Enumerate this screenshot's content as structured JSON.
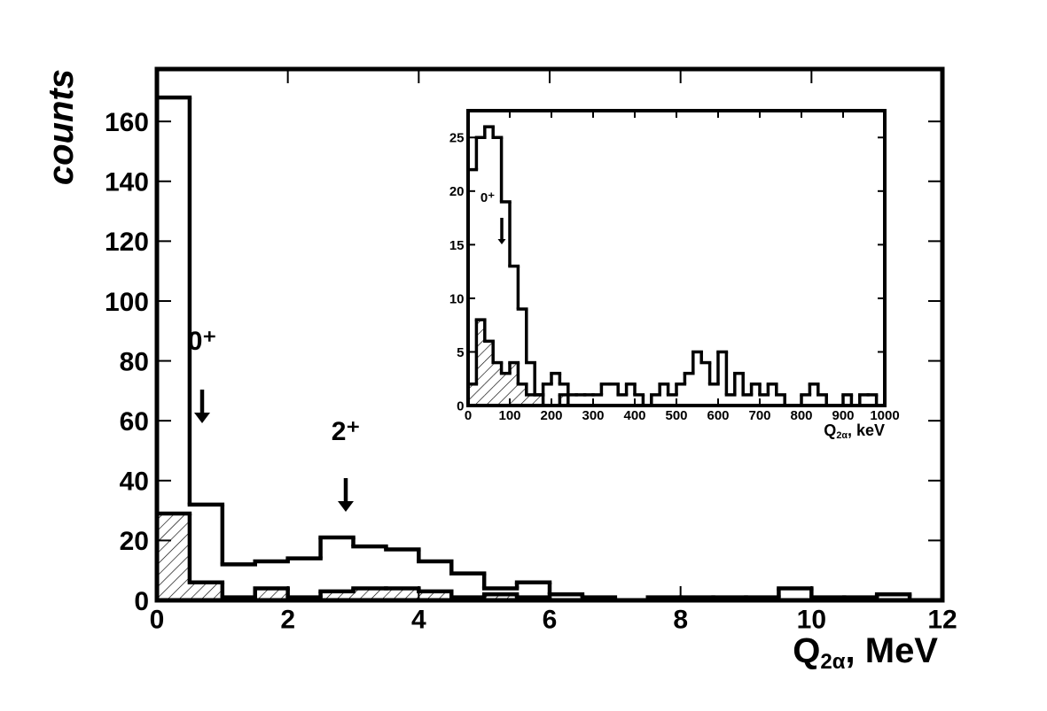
{
  "chart_data": [
    {
      "type": "histogram",
      "x_label": [
        "Q",
        "2α",
        ", MeV"
      ],
      "y_label": "counts",
      "annotations": [
        "0⁺",
        "2⁺"
      ],
      "bins": [
        0,
        0.5,
        1,
        1.5,
        2,
        2.5,
        3,
        3.5,
        4,
        4.5,
        5,
        5.5,
        6,
        6.5,
        7,
        7.5,
        8,
        8.5,
        9,
        9.5,
        10,
        10.5,
        11,
        11.5,
        12
      ],
      "series": [
        {
          "fill": "none",
          "color": "#000000",
          "values": [
            168,
            32,
            12,
            13,
            14,
            21,
            18,
            17,
            13,
            9,
            4,
            6,
            2,
            1,
            0,
            1,
            1,
            1,
            1,
            4,
            1,
            1,
            2,
            0
          ]
        },
        {
          "fill": "hatched",
          "color": "#000000",
          "values": [
            29,
            6,
            1,
            4,
            1,
            3,
            4,
            4,
            3,
            1,
            2,
            1,
            0,
            0,
            0,
            0,
            0,
            0,
            0,
            0,
            0,
            0,
            0,
            0
          ]
        }
      ],
      "xlim": [
        0,
        12
      ],
      "ylim": [
        0,
        177.5
      ],
      "xticks": [
        0,
        2,
        4,
        6,
        8,
        10,
        12
      ],
      "yticks": [
        0,
        20,
        40,
        60,
        80,
        100,
        120,
        140,
        160
      ]
    },
    {
      "type": "histogram",
      "x_label": [
        "Q",
        "2α",
        ", keV"
      ],
      "annotations": [
        "0⁺"
      ],
      "bins": [
        0,
        20,
        40,
        60,
        80,
        100,
        120,
        140,
        160,
        180,
        200,
        220,
        240,
        260,
        280,
        300,
        320,
        340,
        360,
        380,
        400,
        420,
        440,
        460,
        480,
        500,
        520,
        540,
        560,
        580,
        600,
        620,
        640,
        660,
        680,
        700,
        720,
        740,
        760,
        780,
        800,
        820,
        840,
        860,
        880,
        900,
        920,
        940,
        960,
        980,
        1000
      ],
      "series": [
        {
          "fill": "none",
          "color": "#000000",
          "values": [
            22,
            25,
            26,
            25,
            19,
            13,
            9,
            4,
            1,
            2,
            3,
            2,
            1,
            1,
            1,
            1,
            2,
            2,
            1,
            2,
            1,
            0,
            1,
            2,
            1,
            2,
            3,
            5,
            4,
            2,
            5,
            1,
            3,
            1,
            2,
            1,
            2,
            1,
            0,
            0,
            1,
            2,
            1,
            0,
            0,
            1,
            0,
            1,
            1,
            0
          ]
        },
        {
          "fill": "hatched",
          "color": "#000000",
          "values": [
            2,
            8,
            6,
            4,
            3,
            4,
            2,
            1,
            1,
            0,
            0,
            1,
            0,
            0,
            0,
            0,
            0,
            0,
            0,
            0,
            0,
            0,
            0,
            0,
            0,
            0,
            0,
            0,
            0,
            0,
            0,
            0,
            0,
            0,
            0,
            0,
            0,
            0,
            0,
            0,
            0,
            0,
            0,
            0,
            0,
            0,
            0,
            0,
            0,
            0
          ]
        }
      ],
      "xlim": [
        0,
        1000
      ],
      "ylim": [
        0,
        27.5
      ],
      "xticks": [
        0,
        100,
        200,
        300,
        400,
        500,
        600,
        700,
        800,
        900,
        1000
      ],
      "yticks": [
        0,
        5,
        10,
        15,
        20,
        25
      ]
    }
  ]
}
